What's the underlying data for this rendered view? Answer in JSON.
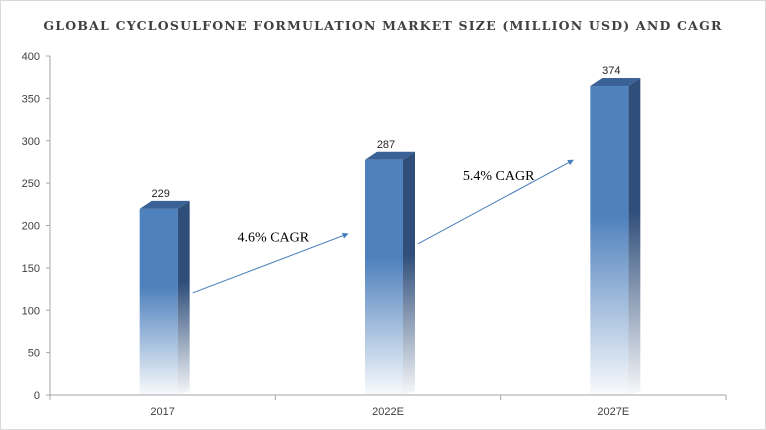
{
  "chart_data": {
    "type": "bar",
    "title": "GLOBAL CYCLOSULFONE FORMULATION MARKET SIZE (MILLION USD) AND CAGR",
    "categories": [
      "2017",
      "2022E",
      "2027E"
    ],
    "values": [
      229,
      287,
      374
    ],
    "ylim": [
      0,
      400
    ],
    "yticks": [
      0,
      50,
      100,
      150,
      200,
      250,
      300,
      350,
      400
    ],
    "grid": false,
    "legend": "none",
    "annotations": [
      {
        "text": "4.6% CAGR",
        "from": "2017",
        "to": "2022E"
      },
      {
        "text": "5.4% CAGR",
        "from": "2022E",
        "to": "2027E"
      }
    ],
    "colors": {
      "bar_front": "#4f81bd",
      "bar_side": "#2f4e7a",
      "bar_top": "#3b6297",
      "arrow": "#4a7ebb",
      "axis": "#a6a6a6"
    }
  }
}
